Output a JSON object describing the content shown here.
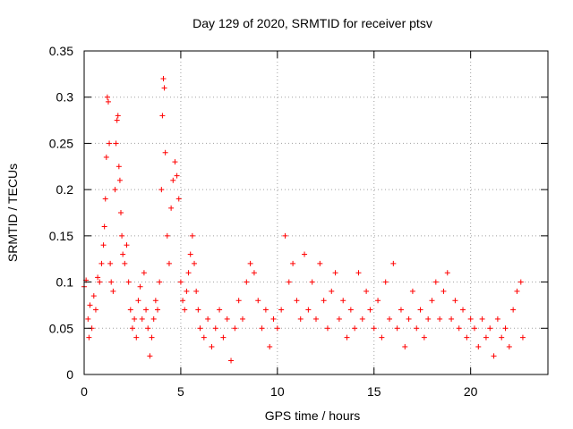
{
  "chart_data": {
    "type": "scatter",
    "title": "Day 129 of 2020, SRMTID for receiver ptsv",
    "xlabel": "GPS time / hours",
    "ylabel": "SRMTID / TECUs",
    "xlim": [
      0,
      24
    ],
    "ylim": [
      0,
      0.35
    ],
    "xticks": [
      0,
      5,
      10,
      15,
      20
    ],
    "xtick_labels": [
      "0",
      "5",
      "10",
      "15",
      "20"
    ],
    "yticks": [
      0,
      0.05,
      0.1,
      0.15,
      0.2,
      0.25,
      0.3,
      0.35
    ],
    "ytick_labels": [
      "0",
      "0.05",
      "0.1",
      "0.15",
      "0.2",
      "0.25",
      "0.3",
      "0.35"
    ],
    "grid": true,
    "marker": "+",
    "color": "#ff0000",
    "series": [
      {
        "name": "SRMTID",
        "points": [
          [
            0.0,
            0.095
          ],
          [
            0.1,
            0.102
          ],
          [
            0.2,
            0.06
          ],
          [
            0.25,
            0.04
          ],
          [
            0.3,
            0.075
          ],
          [
            0.4,
            0.05
          ],
          [
            0.5,
            0.085
          ],
          [
            0.6,
            0.07
          ],
          [
            0.7,
            0.105
          ],
          [
            0.8,
            0.1
          ],
          [
            0.9,
            0.12
          ],
          [
            1.0,
            0.14
          ],
          [
            1.05,
            0.16
          ],
          [
            1.1,
            0.19
          ],
          [
            1.15,
            0.235
          ],
          [
            1.2,
            0.3
          ],
          [
            1.25,
            0.295
          ],
          [
            1.3,
            0.25
          ],
          [
            1.35,
            0.12
          ],
          [
            1.4,
            0.1
          ],
          [
            1.5,
            0.09
          ],
          [
            1.6,
            0.2
          ],
          [
            1.65,
            0.25
          ],
          [
            1.7,
            0.275
          ],
          [
            1.75,
            0.28
          ],
          [
            1.8,
            0.225
          ],
          [
            1.85,
            0.21
          ],
          [
            1.9,
            0.175
          ],
          [
            1.95,
            0.15
          ],
          [
            2.0,
            0.13
          ],
          [
            2.1,
            0.12
          ],
          [
            2.2,
            0.14
          ],
          [
            2.3,
            0.1
          ],
          [
            2.4,
            0.07
          ],
          [
            2.5,
            0.05
          ],
          [
            2.6,
            0.06
          ],
          [
            2.7,
            0.04
          ],
          [
            2.8,
            0.08
          ],
          [
            2.9,
            0.095
          ],
          [
            3.0,
            0.06
          ],
          [
            3.1,
            0.11
          ],
          [
            3.2,
            0.07
          ],
          [
            3.3,
            0.05
          ],
          [
            3.4,
            0.02
          ],
          [
            3.5,
            0.04
          ],
          [
            3.6,
            0.06
          ],
          [
            3.7,
            0.08
          ],
          [
            3.8,
            0.07
          ],
          [
            3.9,
            0.1
          ],
          [
            4.0,
            0.2
          ],
          [
            4.05,
            0.28
          ],
          [
            4.1,
            0.32
          ],
          [
            4.15,
            0.31
          ],
          [
            4.2,
            0.24
          ],
          [
            4.3,
            0.15
          ],
          [
            4.4,
            0.12
          ],
          [
            4.5,
            0.18
          ],
          [
            4.6,
            0.21
          ],
          [
            4.7,
            0.23
          ],
          [
            4.8,
            0.215
          ],
          [
            4.9,
            0.19
          ],
          [
            5.0,
            0.1
          ],
          [
            5.1,
            0.08
          ],
          [
            5.2,
            0.07
          ],
          [
            5.3,
            0.09
          ],
          [
            5.4,
            0.11
          ],
          [
            5.5,
            0.13
          ],
          [
            5.6,
            0.15
          ],
          [
            5.7,
            0.12
          ],
          [
            5.8,
            0.09
          ],
          [
            5.9,
            0.07
          ],
          [
            6.0,
            0.05
          ],
          [
            6.2,
            0.04
          ],
          [
            6.4,
            0.06
          ],
          [
            6.6,
            0.03
          ],
          [
            6.8,
            0.05
          ],
          [
            7.0,
            0.07
          ],
          [
            7.2,
            0.04
          ],
          [
            7.4,
            0.06
          ],
          [
            7.6,
            0.015
          ],
          [
            7.8,
            0.05
          ],
          [
            8.0,
            0.08
          ],
          [
            8.2,
            0.06
          ],
          [
            8.4,
            0.1
          ],
          [
            8.6,
            0.12
          ],
          [
            8.8,
            0.11
          ],
          [
            9.0,
            0.08
          ],
          [
            9.2,
            0.05
          ],
          [
            9.4,
            0.07
          ],
          [
            9.6,
            0.03
          ],
          [
            9.8,
            0.06
          ],
          [
            10.0,
            0.05
          ],
          [
            10.2,
            0.07
          ],
          [
            10.4,
            0.15
          ],
          [
            10.6,
            0.1
          ],
          [
            10.8,
            0.12
          ],
          [
            11.0,
            0.08
          ],
          [
            11.2,
            0.06
          ],
          [
            11.4,
            0.13
          ],
          [
            11.6,
            0.07
          ],
          [
            11.8,
            0.1
          ],
          [
            12.0,
            0.06
          ],
          [
            12.2,
            0.12
          ],
          [
            12.4,
            0.08
          ],
          [
            12.6,
            0.05
          ],
          [
            12.8,
            0.09
          ],
          [
            13.0,
            0.11
          ],
          [
            13.2,
            0.06
          ],
          [
            13.4,
            0.08
          ],
          [
            13.6,
            0.04
          ],
          [
            13.8,
            0.07
          ],
          [
            14.0,
            0.05
          ],
          [
            14.2,
            0.11
          ],
          [
            14.4,
            0.06
          ],
          [
            14.6,
            0.09
          ],
          [
            14.8,
            0.07
          ],
          [
            15.0,
            0.05
          ],
          [
            15.2,
            0.08
          ],
          [
            15.4,
            0.04
          ],
          [
            15.6,
            0.1
          ],
          [
            15.8,
            0.06
          ],
          [
            16.0,
            0.12
          ],
          [
            16.2,
            0.05
          ],
          [
            16.4,
            0.07
          ],
          [
            16.6,
            0.03
          ],
          [
            16.8,
            0.06
          ],
          [
            17.0,
            0.09
          ],
          [
            17.2,
            0.05
          ],
          [
            17.4,
            0.07
          ],
          [
            17.6,
            0.04
          ],
          [
            17.8,
            0.06
          ],
          [
            18.0,
            0.08
          ],
          [
            18.2,
            0.1
          ],
          [
            18.4,
            0.06
          ],
          [
            18.6,
            0.09
          ],
          [
            18.8,
            0.11
          ],
          [
            19.0,
            0.06
          ],
          [
            19.2,
            0.08
          ],
          [
            19.4,
            0.05
          ],
          [
            19.6,
            0.07
          ],
          [
            19.8,
            0.04
          ],
          [
            20.0,
            0.06
          ],
          [
            20.2,
            0.05
          ],
          [
            20.4,
            0.03
          ],
          [
            20.6,
            0.06
          ],
          [
            20.8,
            0.04
          ],
          [
            21.0,
            0.05
          ],
          [
            21.2,
            0.02
          ],
          [
            21.4,
            0.06
          ],
          [
            21.6,
            0.04
          ],
          [
            21.8,
            0.05
          ],
          [
            22.0,
            0.03
          ],
          [
            22.2,
            0.07
          ],
          [
            22.4,
            0.09
          ],
          [
            22.6,
            0.1
          ],
          [
            22.7,
            0.04
          ]
        ]
      }
    ]
  }
}
